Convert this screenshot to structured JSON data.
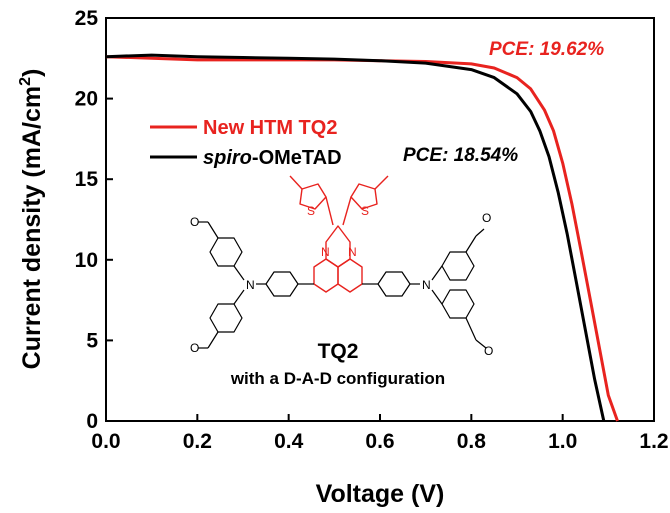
{
  "chart_data": {
    "type": "line",
    "xlabel": "Voltage (V)",
    "ylabel": "Current density (mA/cm",
    "ylabel_sup": "2",
    "ylabel_close": ")",
    "xlim": [
      0,
      1.2
    ],
    "ylim": [
      0,
      25
    ],
    "x_ticks": [
      "0.0",
      "0.2",
      "0.4",
      "0.6",
      "0.8",
      "1.0",
      "1.2"
    ],
    "y_ticks": [
      "0",
      "5",
      "10",
      "15",
      "20",
      "25"
    ],
    "grid": false,
    "legend_position": "left",
    "series": [
      {
        "name": "New HTM TQ2",
        "color": "#e8231f",
        "x": [
          0,
          0.1,
          0.2,
          0.3,
          0.4,
          0.5,
          0.6,
          0.7,
          0.8,
          0.85,
          0.9,
          0.93,
          0.96,
          0.98,
          1.0,
          1.02,
          1.04,
          1.06,
          1.08,
          1.1,
          1.12
        ],
        "y": [
          22.6,
          22.5,
          22.4,
          22.4,
          22.4,
          22.4,
          22.35,
          22.3,
          22.15,
          21.9,
          21.3,
          20.6,
          19.3,
          18.0,
          16.0,
          13.5,
          10.6,
          7.6,
          4.6,
          1.6,
          0
        ]
      },
      {
        "name": "spiro-OMeTAD",
        "color": "#000000",
        "x": [
          0,
          0.1,
          0.2,
          0.3,
          0.4,
          0.5,
          0.6,
          0.7,
          0.8,
          0.85,
          0.9,
          0.93,
          0.95,
          0.97,
          0.99,
          1.01,
          1.03,
          1.05,
          1.07,
          1.09
        ],
        "y": [
          22.6,
          22.7,
          22.6,
          22.55,
          22.5,
          22.45,
          22.35,
          22.2,
          21.8,
          21.3,
          20.3,
          19.2,
          18.0,
          16.4,
          14.2,
          11.6,
          8.6,
          5.6,
          2.6,
          0
        ]
      }
    ],
    "legend": [
      {
        "italic": "",
        "text": "New HTM TQ2",
        "color": "#e8231f"
      },
      {
        "italic": "spiro",
        "text": "-OMeTAD",
        "color": "#000000"
      }
    ],
    "annotations": {
      "pce_red": "PCE: 19.62%",
      "pce_black": "PCE: 18.54%",
      "molecule_name": "TQ2",
      "molecule_desc": "with a D-A-D configuration"
    },
    "molecule_atoms": {
      "sulfur": "S",
      "nitrogen": "N",
      "methoxy": "O"
    }
  }
}
